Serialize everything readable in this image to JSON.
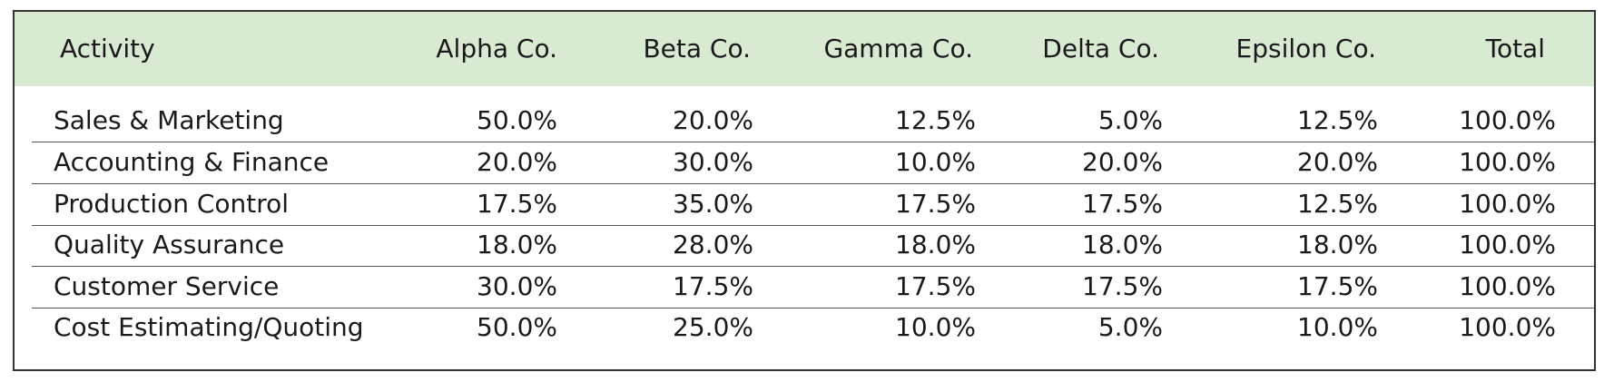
{
  "table": {
    "header": [
      "Activity",
      "Alpha Co.",
      "Beta Co.",
      "Gamma Co.",
      "Delta Co.",
      "Epsilon Co.",
      "Total"
    ],
    "rows": [
      [
        "Sales & Marketing",
        "50.0%",
        "20.0%",
        "12.5%",
        "5.0%",
        "12.5%",
        "100.0%"
      ],
      [
        "Accounting & Finance",
        "20.0%",
        "30.0%",
        "10.0%",
        "20.0%",
        "20.0%",
        "100.0%"
      ],
      [
        "Production Control",
        "17.5%",
        "35.0%",
        "17.5%",
        "17.5%",
        "12.5%",
        "100.0%"
      ],
      [
        "Quality Assurance",
        "18.0%",
        "28.0%",
        "18.0%",
        "18.0%",
        "18.0%",
        "100.0%"
      ],
      [
        "Customer Service",
        "30.0%",
        "17.5%",
        "17.5%",
        "17.5%",
        "17.5%",
        "100.0%"
      ],
      [
        "Cost Estimating/Quoting",
        "50.0%",
        "25.0%",
        "10.0%",
        "5.0%",
        "10.0%",
        "100.0%"
      ]
    ]
  }
}
